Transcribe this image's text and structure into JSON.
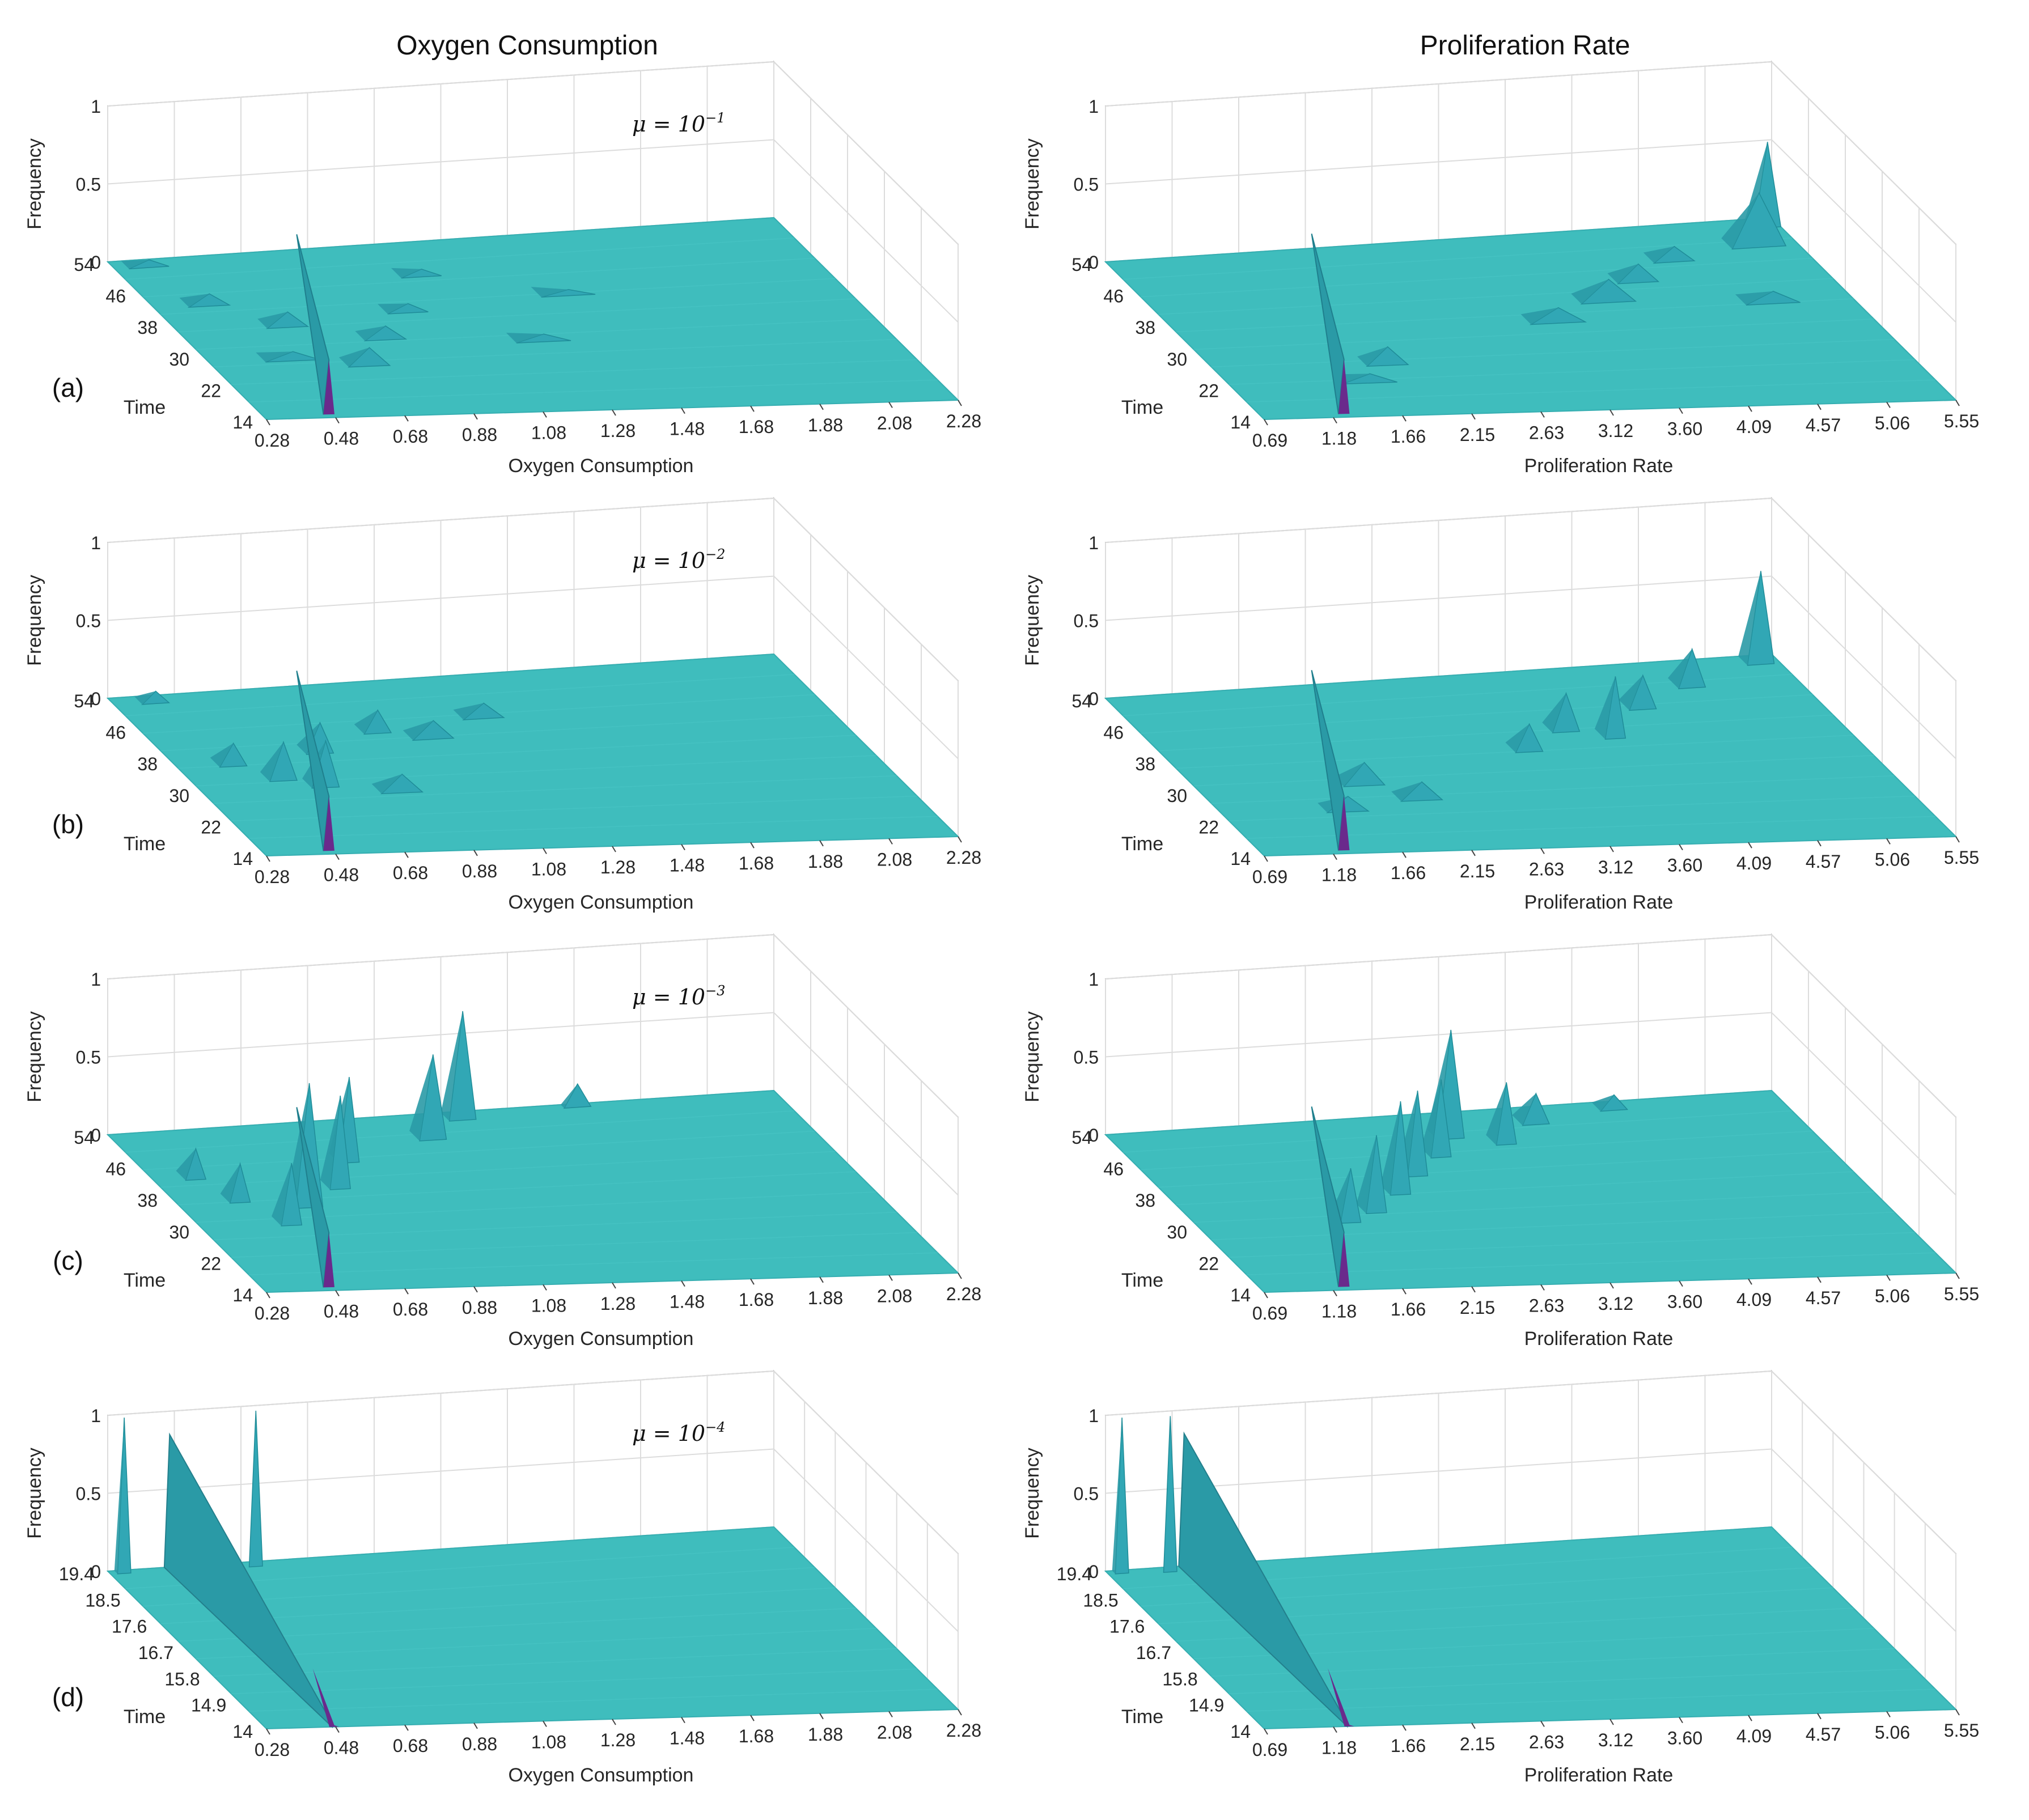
{
  "figure": {
    "columns": [
      "Oxygen Consumption",
      "Proliferation Rate"
    ],
    "colors": {
      "surface": "#3fbdbd",
      "surface_dark": "#2a9aa6",
      "ridge": "#31a7b5",
      "accent": "#6a2a8c",
      "grid": "#dcdcdc"
    }
  },
  "chart_data": [
    {
      "panel": "(a)",
      "column": "Oxygen Consumption",
      "type": "surface",
      "title": "Oxygen Consumption",
      "annotation": {
        "base": "μ = 10",
        "exp": "−1"
      },
      "xlabel": "Oxygen Consumption",
      "ylabel": "Time",
      "zlabel": "Frequency",
      "xticks": [
        "0.28",
        "0.48",
        "0.68",
        "0.88",
        "1.08",
        "1.28",
        "1.48",
        "1.68",
        "1.88",
        "2.08",
        "2.28"
      ],
      "yticks": [
        "14",
        "22",
        "30",
        "38",
        "46",
        "54"
      ],
      "zticks": [
        "0",
        "0.5",
        "1"
      ],
      "xlim": [
        0.28,
        2.28
      ],
      "ylim": [
        14,
        54
      ],
      "zlim": [
        0,
        1
      ],
      "peaks": [
        {
          "x": 0.08,
          "t": 0.7,
          "h": 0.08,
          "w": 0.03
        },
        {
          "x": 0.12,
          "t": 0.35,
          "h": 0.06,
          "w": 0.04
        },
        {
          "x": 0.16,
          "t": 0.55,
          "h": 0.1,
          "w": 0.03
        },
        {
          "x": 0.22,
          "t": 0.3,
          "h": 0.12,
          "w": 0.03
        },
        {
          "x": 0.28,
          "t": 0.45,
          "h": 0.09,
          "w": 0.03
        },
        {
          "x": 0.35,
          "t": 0.6,
          "h": 0.06,
          "w": 0.03
        },
        {
          "x": 0.42,
          "t": 0.8,
          "h": 0.05,
          "w": 0.03
        },
        {
          "x": 0.5,
          "t": 0.4,
          "h": 0.05,
          "w": 0.04
        },
        {
          "x": 0.6,
          "t": 0.65,
          "h": 0.04,
          "w": 0.04
        },
        {
          "x": 0.05,
          "t": 0.95,
          "h": 0.05,
          "w": 0.03
        }
      ],
      "initial_x": 0.095,
      "initial_h": 0.95
    },
    {
      "panel": "(a)",
      "column": "Proliferation Rate",
      "type": "surface",
      "title": "Proliferation Rate",
      "xlabel": "Proliferation Rate",
      "ylabel": "Time",
      "zlabel": "Frequency",
      "xticks": [
        "0.69",
        "1.18",
        "1.66",
        "2.15",
        "2.63",
        "3.12",
        "3.60",
        "4.09",
        "4.57",
        "5.06",
        "5.55"
      ],
      "yticks": [
        "14",
        "22",
        "30",
        "38",
        "46",
        "54"
      ],
      "zticks": [
        "0",
        "0.5",
        "1"
      ],
      "xlim": [
        0.69,
        5.55
      ],
      "ylim": [
        14,
        54
      ],
      "zlim": [
        0,
        1
      ],
      "peaks": [
        {
          "x": 0.25,
          "t": 0.3,
          "h": 0.12,
          "w": 0.03
        },
        {
          "x": 0.2,
          "t": 0.2,
          "h": 0.06,
          "w": 0.04
        },
        {
          "x": 0.55,
          "t": 0.5,
          "h": 0.1,
          "w": 0.04
        },
        {
          "x": 0.65,
          "t": 0.6,
          "h": 0.15,
          "w": 0.04
        },
        {
          "x": 0.72,
          "t": 0.7,
          "h": 0.12,
          "w": 0.03
        },
        {
          "x": 0.8,
          "t": 0.8,
          "h": 0.1,
          "w": 0.03
        },
        {
          "x": 0.94,
          "t": 0.85,
          "h": 0.35,
          "w": 0.04
        },
        {
          "x": 0.98,
          "t": 0.95,
          "h": 0.55,
          "w": 0.02
        },
        {
          "x": 0.88,
          "t": 0.55,
          "h": 0.08,
          "w": 0.04
        }
      ],
      "initial_x": 0.12,
      "initial_h": 0.95
    },
    {
      "panel": "(b)",
      "column": "Oxygen Consumption",
      "type": "surface",
      "annotation": {
        "base": "μ = 10",
        "exp": "−2"
      },
      "xlabel": "Oxygen Consumption",
      "ylabel": "Time",
      "zlabel": "Frequency",
      "xticks": [
        "0.28",
        "0.48",
        "0.68",
        "0.88",
        "1.08",
        "1.28",
        "1.48",
        "1.68",
        "1.88",
        "2.08",
        "2.28"
      ],
      "yticks": [
        "14",
        "22",
        "30",
        "38",
        "46",
        "54"
      ],
      "zticks": [
        "0",
        "0.5",
        "1"
      ],
      "xlim": [
        0.28,
        2.28
      ],
      "ylim": [
        14,
        54
      ],
      "zlim": [
        0,
        1
      ],
      "peaks": [
        {
          "x": 0.08,
          "t": 0.55,
          "h": 0.15,
          "w": 0.02
        },
        {
          "x": 0.13,
          "t": 0.45,
          "h": 0.25,
          "w": 0.02
        },
        {
          "x": 0.18,
          "t": 0.4,
          "h": 0.3,
          "w": 0.02
        },
        {
          "x": 0.22,
          "t": 0.6,
          "h": 0.2,
          "w": 0.02
        },
        {
          "x": 0.28,
          "t": 0.35,
          "h": 0.12,
          "w": 0.03
        },
        {
          "x": 0.33,
          "t": 0.7,
          "h": 0.15,
          "w": 0.02
        },
        {
          "x": 0.4,
          "t": 0.65,
          "h": 0.12,
          "w": 0.03
        },
        {
          "x": 0.5,
          "t": 0.75,
          "h": 0.1,
          "w": 0.03
        },
        {
          "x": 0.06,
          "t": 0.95,
          "h": 0.08,
          "w": 0.02
        }
      ],
      "initial_x": 0.095,
      "initial_h": 0.95
    },
    {
      "panel": "(b)",
      "column": "Proliferation Rate",
      "type": "surface",
      "xlabel": "Proliferation Rate",
      "ylabel": "Time",
      "zlabel": "Frequency",
      "xticks": [
        "0.69",
        "1.18",
        "1.66",
        "2.15",
        "2.63",
        "3.12",
        "3.60",
        "4.09",
        "4.57",
        "5.06",
        "5.55"
      ],
      "yticks": [
        "14",
        "22",
        "30",
        "38",
        "46",
        "54"
      ],
      "zticks": [
        "0",
        "0.5",
        "1"
      ],
      "xlim": [
        0.69,
        5.55
      ],
      "ylim": [
        14,
        54
      ],
      "zlim": [
        0,
        1
      ],
      "peaks": [
        {
          "x": 0.18,
          "t": 0.25,
          "h": 0.1,
          "w": 0.03
        },
        {
          "x": 0.24,
          "t": 0.4,
          "h": 0.15,
          "w": 0.03
        },
        {
          "x": 0.3,
          "t": 0.3,
          "h": 0.12,
          "w": 0.03
        },
        {
          "x": 0.52,
          "t": 0.55,
          "h": 0.18,
          "w": 0.02
        },
        {
          "x": 0.6,
          "t": 0.65,
          "h": 0.25,
          "w": 0.02
        },
        {
          "x": 0.66,
          "t": 0.6,
          "h": 0.4,
          "w": 0.015
        },
        {
          "x": 0.74,
          "t": 0.75,
          "h": 0.22,
          "w": 0.02
        },
        {
          "x": 0.84,
          "t": 0.85,
          "h": 0.25,
          "w": 0.02
        },
        {
          "x": 0.97,
          "t": 0.95,
          "h": 0.6,
          "w": 0.02
        }
      ],
      "initial_x": 0.12,
      "initial_h": 0.95
    },
    {
      "panel": "(c)",
      "column": "Oxygen Consumption",
      "type": "surface",
      "annotation": {
        "base": "μ = 10",
        "exp": "−3"
      },
      "xlabel": "Oxygen Consumption",
      "ylabel": "Time",
      "zlabel": "Frequency",
      "xticks": [
        "0.28",
        "0.48",
        "0.68",
        "0.88",
        "1.08",
        "1.28",
        "1.48",
        "1.68",
        "1.88",
        "2.08",
        "2.28"
      ],
      "yticks": [
        "14",
        "22",
        "30",
        "38",
        "46",
        "54"
      ],
      "zticks": [
        "0",
        "0.5",
        "1"
      ],
      "xlim": [
        0.28,
        2.28
      ],
      "ylim": [
        14,
        54
      ],
      "zlim": [
        0,
        1
      ],
      "peaks": [
        {
          "x": 0.06,
          "t": 0.7,
          "h": 0.2,
          "w": 0.015
        },
        {
          "x": 0.09,
          "t": 0.55,
          "h": 0.25,
          "w": 0.015
        },
        {
          "x": 0.13,
          "t": 0.4,
          "h": 0.4,
          "w": 0.015
        },
        {
          "x": 0.18,
          "t": 0.5,
          "h": 0.8,
          "w": 0.02
        },
        {
          "x": 0.25,
          "t": 0.6,
          "h": 0.6,
          "w": 0.015
        },
        {
          "x": 0.3,
          "t": 0.75,
          "h": 0.55,
          "w": 0.015
        },
        {
          "x": 0.45,
          "t": 0.85,
          "h": 0.55,
          "w": 0.02
        },
        {
          "x": 0.52,
          "t": 0.95,
          "h": 0.7,
          "w": 0.02
        },
        {
          "x": 0.7,
          "t": 0.98,
          "h": 0.15,
          "w": 0.02
        }
      ],
      "initial_x": 0.095,
      "initial_h": 0.95
    },
    {
      "panel": "(c)",
      "column": "Proliferation Rate",
      "type": "surface",
      "xlabel": "Proliferation Rate",
      "ylabel": "Time",
      "zlabel": "Frequency",
      "xticks": [
        "0.69",
        "1.18",
        "1.66",
        "2.15",
        "2.63",
        "3.12",
        "3.60",
        "4.09",
        "4.57",
        "5.06",
        "5.55"
      ],
      "yticks": [
        "14",
        "22",
        "30",
        "38",
        "46",
        "54"
      ],
      "zticks": [
        "0",
        "0.5",
        "1"
      ],
      "xlim": [
        0.69,
        5.55
      ],
      "ylim": [
        14,
        54
      ],
      "zlim": [
        0,
        1
      ],
      "peaks": [
        {
          "x": 0.22,
          "t": 0.4,
          "h": 0.35,
          "w": 0.015
        },
        {
          "x": 0.27,
          "t": 0.45,
          "h": 0.5,
          "w": 0.015
        },
        {
          "x": 0.33,
          "t": 0.55,
          "h": 0.6,
          "w": 0.015
        },
        {
          "x": 0.38,
          "t": 0.65,
          "h": 0.55,
          "w": 0.015
        },
        {
          "x": 0.44,
          "t": 0.75,
          "h": 0.5,
          "w": 0.015
        },
        {
          "x": 0.48,
          "t": 0.85,
          "h": 0.7,
          "w": 0.02
        },
        {
          "x": 0.55,
          "t": 0.8,
          "h": 0.4,
          "w": 0.015
        },
        {
          "x": 0.62,
          "t": 0.9,
          "h": 0.2,
          "w": 0.02
        },
        {
          "x": 0.75,
          "t": 0.95,
          "h": 0.1,
          "w": 0.02
        }
      ],
      "initial_x": 0.12,
      "initial_h": 0.95
    },
    {
      "panel": "(d)",
      "column": "Oxygen Consumption",
      "type": "surface",
      "annotation": {
        "base": "μ = 10",
        "exp": "−4"
      },
      "xlabel": "Oxygen Consumption",
      "ylabel": "Time",
      "zlabel": "Frequency",
      "xticks": [
        "0.28",
        "0.48",
        "0.68",
        "0.88",
        "1.08",
        "1.28",
        "1.48",
        "1.68",
        "1.88",
        "2.08",
        "2.28"
      ],
      "yticks": [
        "14",
        "14.9",
        "15.8",
        "16.7",
        "17.6",
        "18.5",
        "19.4"
      ],
      "zticks": [
        "0",
        "0.5",
        "1"
      ],
      "xlim": [
        0.28,
        2.28
      ],
      "ylim": [
        14,
        19.4
      ],
      "zlim": [
        0,
        1
      ],
      "peaks": [
        {
          "x": 0.02,
          "t": 0.98,
          "h": 1.0,
          "w": 0.01
        }
      ],
      "initial_x": 0.095,
      "initial_h": 0.85,
      "wall": true
    },
    {
      "panel": "(d)",
      "column": "Proliferation Rate",
      "type": "surface",
      "xlabel": "Proliferation Rate",
      "ylabel": "Time",
      "zlabel": "Frequency",
      "xticks": [
        "0.69",
        "1.18",
        "1.66",
        "2.15",
        "2.63",
        "3.12",
        "3.60",
        "4.09",
        "4.57",
        "5.06",
        "5.55"
      ],
      "yticks": [
        "14",
        "14.9",
        "15.8",
        "16.7",
        "17.6",
        "18.5",
        "19.4"
      ],
      "zticks": [
        "0",
        "0.5",
        "1"
      ],
      "xlim": [
        0.69,
        5.55
      ],
      "ylim": [
        14,
        19.4
      ],
      "zlim": [
        0,
        1
      ],
      "peaks": [
        {
          "x": 0.02,
          "t": 0.98,
          "h": 1.0,
          "w": 0.01
        }
      ],
      "initial_x": 0.12,
      "initial_h": 0.85,
      "wall": true
    }
  ]
}
